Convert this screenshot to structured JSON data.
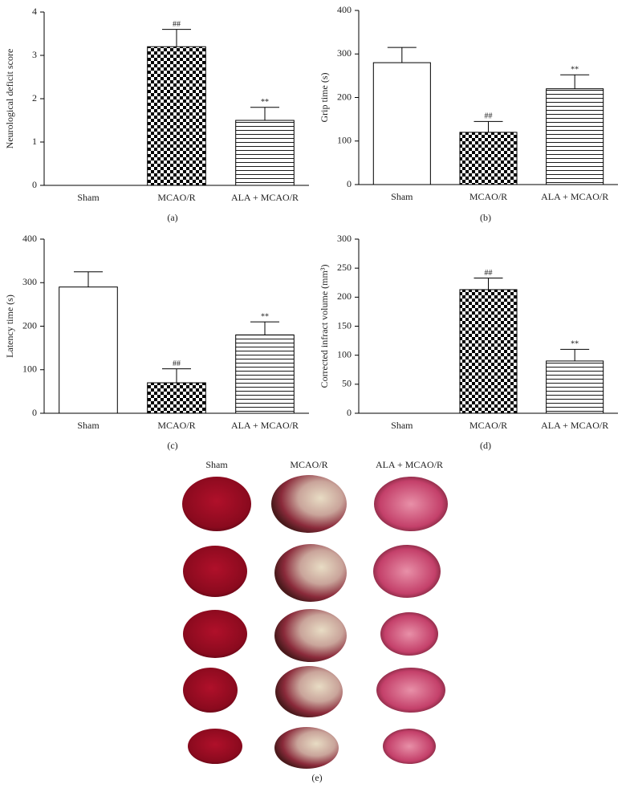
{
  "chart_data": [
    {
      "type": "bar",
      "panel": "(a)",
      "ylabel": "Neurological deficit score",
      "categories": [
        "Sham",
        "MCAO/R",
        "ALA + MCAO/R"
      ],
      "values": [
        0,
        3.2,
        1.5
      ],
      "errors": [
        0,
        0.4,
        0.3
      ],
      "annotations": [
        null,
        "##",
        "**"
      ],
      "fills": [
        "white",
        "checker",
        "hlines"
      ],
      "ylim": [
        0,
        4
      ],
      "yticks": [
        0,
        1,
        2,
        3,
        4
      ]
    },
    {
      "type": "bar",
      "panel": "(b)",
      "ylabel": "Grip time (s)",
      "categories": [
        "Sham",
        "MCAO/R",
        "ALA + MCAO/R"
      ],
      "values": [
        280,
        120,
        220
      ],
      "errors": [
        35,
        25,
        32
      ],
      "annotations": [
        null,
        "##",
        "**"
      ],
      "fills": [
        "white",
        "checker",
        "hlines"
      ],
      "ylim": [
        0,
        400
      ],
      "yticks": [
        0,
        100,
        200,
        300,
        400
      ]
    },
    {
      "type": "bar",
      "panel": "(c)",
      "ylabel": "Latency time (s)",
      "categories": [
        "Sham",
        "MCAO/R",
        "ALA + MCAO/R"
      ],
      "values": [
        290,
        70,
        180
      ],
      "errors": [
        35,
        32,
        30
      ],
      "annotations": [
        null,
        "##",
        "**"
      ],
      "fills": [
        "white",
        "checker",
        "hlines"
      ],
      "ylim": [
        0,
        400
      ],
      "yticks": [
        0,
        100,
        200,
        300,
        400
      ]
    },
    {
      "type": "bar",
      "panel": "(d)",
      "ylabel": "Corrected infract volume (mm³)",
      "categories": [
        "Sham",
        "MCAO/R",
        "ALA + MCAO/R"
      ],
      "values": [
        0,
        213,
        90
      ],
      "errors": [
        0,
        20,
        20
      ],
      "annotations": [
        null,
        "##",
        "**"
      ],
      "fills": [
        "white",
        "checker",
        "hlines"
      ],
      "ylim": [
        0,
        300
      ],
      "yticks": [
        0,
        50,
        100,
        150,
        200,
        250,
        300
      ]
    }
  ],
  "photo_panel": {
    "columns": [
      "Sham",
      "MCAO/R",
      "ALA + MCAO/R"
    ],
    "label": "(e)"
  }
}
